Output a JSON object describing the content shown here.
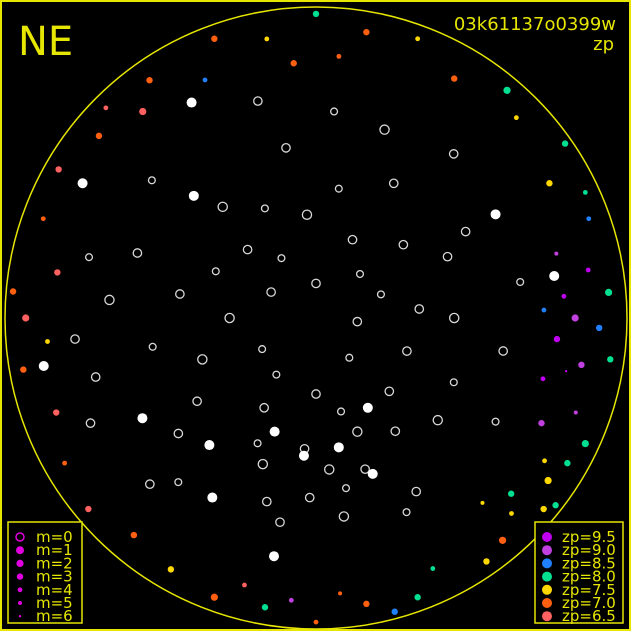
{
  "title": {
    "corner_label": "NE",
    "frame_id": "03k61137o0399w",
    "mode": "zp"
  },
  "colors": {
    "frame": "#e6e600",
    "catalog": "#d8d8d8",
    "bright": "#ffffff"
  },
  "legend_m": {
    "items": [
      "m=0",
      "m=1",
      "m=2",
      "m=3",
      "m=4",
      "m=5",
      "m=6"
    ],
    "marker_color": "#e000e0"
  },
  "legend_zp": {
    "items": [
      {
        "label": "zp=9.5",
        "color": "#c000f0"
      },
      {
        "label": "zp=9.0",
        "color": "#c040e0"
      },
      {
        "label": "zp=8.5",
        "color": "#2080ff"
      },
      {
        "label": "zp=8.0",
        "color": "#00e090"
      },
      {
        "label": "zp=7.5",
        "color": "#ffd800"
      },
      {
        "label": "zp=7.0",
        "color": "#ff6010"
      },
      {
        "label": "zp=6.5",
        "color": "#ff6060"
      }
    ]
  },
  "chart_data": {
    "type": "scatter",
    "projection": "all-sky polar (azimuth, zenith distance in degrees)",
    "zenith_distance_range": [
      0,
      90
    ],
    "catalog_stars_az_zd_m": [
      [
        0,
        10,
        3
      ],
      [
        30,
        20,
        4
      ],
      [
        60,
        15,
        3
      ],
      [
        90,
        25,
        2
      ],
      [
        120,
        18,
        4
      ],
      [
        150,
        30,
        3
      ],
      [
        180,
        22,
        3
      ],
      [
        200,
        35,
        2
      ],
      [
        220,
        15,
        4
      ],
      [
        250,
        28,
        3
      ],
      [
        270,
        40,
        2
      ],
      [
        290,
        20,
        4
      ],
      [
        310,
        33,
        3
      ],
      [
        330,
        45,
        3
      ],
      [
        350,
        38,
        4
      ],
      [
        10,
        50,
        3
      ],
      [
        40,
        42,
        2
      ],
      [
        70,
        55,
        3
      ],
      [
        100,
        48,
        4
      ],
      [
        130,
        52,
        3
      ],
      [
        160,
        45,
        2
      ],
      [
        170,
        60,
        3
      ],
      [
        190,
        50,
        4
      ],
      [
        210,
        58,
        3
      ],
      [
        230,
        46,
        2
      ],
      [
        260,
        55,
        3
      ],
      [
        280,
        60,
        4
      ],
      [
        300,
        50,
        3
      ],
      [
        320,
        62,
        3
      ],
      [
        340,
        58,
        2
      ],
      [
        15,
        65,
        3
      ],
      [
        50,
        62,
        4
      ],
      [
        80,
        40,
        3
      ],
      [
        110,
        35,
        2
      ],
      [
        140,
        62,
        4
      ],
      [
        175,
        38,
        3
      ],
      [
        195,
        28,
        4
      ],
      [
        215,
        40,
        3
      ],
      [
        240,
        60,
        4
      ],
      [
        265,
        12,
        3
      ],
      [
        5,
        30,
        2
      ],
      [
        25,
        35,
        4
      ],
      [
        45,
        28,
        3
      ],
      [
        65,
        32,
        4
      ],
      [
        85,
        60,
        2
      ],
      [
        105,
        66,
        3
      ],
      [
        125,
        42,
        3
      ],
      [
        145,
        20,
        4
      ],
      [
        165,
        55,
        3
      ],
      [
        185,
        44,
        2
      ],
      [
        205,
        62,
        4
      ],
      [
        225,
        30,
        3
      ],
      [
        245,
        44,
        4
      ],
      [
        275,
        30,
        3
      ],
      [
        295,
        42,
        3
      ],
      [
        315,
        18,
        4
      ],
      [
        335,
        25,
        3
      ],
      [
        355,
        60,
        4
      ],
      [
        95,
        70,
        3
      ],
      [
        75,
        68,
        4
      ],
      [
        115,
        72,
        3
      ],
      [
        135,
        68,
        3
      ],
      [
        155,
        40,
        4
      ],
      [
        178,
        52,
        3
      ],
      [
        188,
        58,
        2
      ],
      [
        198,
        46,
        3
      ]
    ],
    "bright_stars_az_zd_m": [
      [
        160,
        35,
        1
      ],
      [
        175,
        40,
        1
      ],
      [
        190,
        38,
        1
      ],
      [
        140,
        48,
        1
      ],
      [
        120,
        58,
        1
      ],
      [
        45,
        50,
        1
      ],
      [
        30,
        72,
        1
      ],
      [
        60,
        78,
        1
      ],
      [
        100,
        80,
        1
      ],
      [
        200,
        48,
        1
      ],
      [
        150,
        60,
        1
      ],
      [
        210,
        30,
        1
      ],
      [
        300,
        60,
        1
      ],
      [
        280,
        70,
        1
      ],
      [
        170,
        70,
        1
      ]
    ],
    "measured_stars_az_zd_m_zp": [
      [
        265,
        70,
        3,
        9.5
      ],
      [
        270,
        75,
        2,
        9.0
      ],
      [
        275,
        72,
        4,
        9.5
      ],
      [
        260,
        78,
        3,
        9.0
      ],
      [
        280,
        80,
        4,
        9.5
      ],
      [
        285,
        72,
        5,
        9.0
      ],
      [
        255,
        68,
        4,
        9.5
      ],
      [
        268,
        82,
        3,
        8.5
      ],
      [
        275,
        85,
        2,
        8.0
      ],
      [
        262,
        86,
        3,
        8.0
      ],
      [
        290,
        84,
        4,
        8.5
      ],
      [
        250,
        80,
        5,
        9.0
      ],
      [
        258,
        74,
        6,
        9.5
      ],
      [
        272,
        66,
        4,
        8.5
      ],
      [
        245,
        72,
        3,
        9.0
      ],
      [
        235,
        82,
        2,
        7.5
      ],
      [
        230,
        86,
        3,
        7.5
      ],
      [
        240,
        84,
        3,
        8.0
      ],
      [
        225,
        80,
        4,
        7.5
      ],
      [
        228,
        76,
        3,
        8.0
      ],
      [
        220,
        84,
        2,
        7.0
      ],
      [
        238,
        78,
        4,
        7.5
      ],
      [
        232,
        88,
        3,
        8.0
      ],
      [
        215,
        86,
        3,
        7.5
      ],
      [
        245,
        86,
        2,
        8.0
      ],
      [
        222,
        72,
        5,
        7.5
      ],
      [
        200,
        86,
        3,
        8.0
      ],
      [
        190,
        84,
        3,
        7.0
      ],
      [
        180,
        88,
        4,
        7.0
      ],
      [
        170,
        85,
        3,
        8.0
      ],
      [
        160,
        86,
        2,
        7.0
      ],
      [
        150,
        84,
        3,
        7.5
      ],
      [
        205,
        80,
        4,
        8.0
      ],
      [
        185,
        80,
        5,
        7.0
      ],
      [
        165,
        80,
        4,
        6.5
      ],
      [
        195,
        88,
        3,
        8.5
      ],
      [
        175,
        82,
        4,
        9.0
      ],
      [
        140,
        82,
        3,
        7.0
      ],
      [
        130,
        86,
        3,
        6.5
      ],
      [
        120,
        84,
        4,
        7.0
      ],
      [
        110,
        80,
        3,
        6.5
      ],
      [
        100,
        86,
        3,
        7.0
      ],
      [
        95,
        78,
        4,
        7.5
      ],
      [
        90,
        84,
        2,
        6.5
      ],
      [
        85,
        88,
        3,
        7.0
      ],
      [
        80,
        76,
        3,
        6.5
      ],
      [
        70,
        84,
        4,
        7.0
      ],
      [
        60,
        86,
        3,
        6.5
      ],
      [
        50,
        82,
        3,
        7.0
      ],
      [
        45,
        86,
        4,
        6.5
      ],
      [
        40,
        78,
        2,
        6.5
      ],
      [
        35,
        84,
        3,
        7.0
      ],
      [
        20,
        86,
        3,
        7.0
      ],
      [
        10,
        82,
        4,
        7.5
      ],
      [
        0,
        88,
        3,
        8.0
      ],
      [
        350,
        84,
        3,
        7.0
      ],
      [
        340,
        86,
        4,
        7.5
      ],
      [
        330,
        80,
        3,
        7.0
      ],
      [
        320,
        86,
        2,
        8.0
      ],
      [
        315,
        82,
        4,
        7.5
      ],
      [
        305,
        88,
        3,
        8.0
      ],
      [
        300,
        78,
        3,
        7.5
      ],
      [
        295,
        86,
        4,
        8.0
      ],
      [
        25,
        76,
        4,
        8.5
      ],
      [
        5,
        74,
        3,
        7.0
      ],
      [
        355,
        76,
        4,
        7.0
      ]
    ]
  }
}
